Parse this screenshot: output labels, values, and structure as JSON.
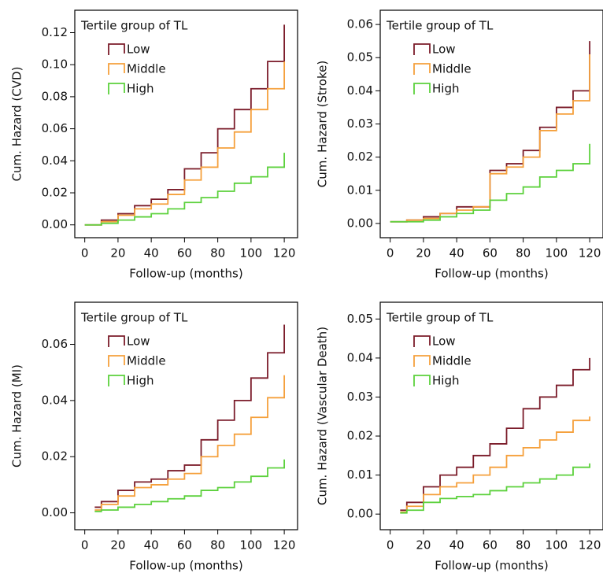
{
  "chart_data": [
    {
      "type": "line",
      "drawstyle": "steps-post",
      "ylabel": "Cum. Hazard (CVD)",
      "xlabel": "Follow-up (months)",
      "legend_title": "Tertile group of TL",
      "legend": "upper left",
      "x": [
        0,
        10,
        20,
        30,
        40,
        50,
        60,
        70,
        80,
        90,
        100,
        110,
        120
      ],
      "series": [
        {
          "name": "Low",
          "color": "#7b1c2a",
          "values": [
            0,
            0.003,
            0.007,
            0.012,
            0.016,
            0.022,
            0.035,
            0.045,
            0.06,
            0.072,
            0.085,
            0.102,
            0.125
          ]
        },
        {
          "name": "Middle",
          "color": "#f5a03c",
          "values": [
            0,
            0.002,
            0.006,
            0.01,
            0.013,
            0.019,
            0.028,
            0.036,
            0.048,
            0.058,
            0.072,
            0.085,
            0.102
          ]
        },
        {
          "name": "High",
          "color": "#5cd13c",
          "values": [
            0,
            0.001,
            0.003,
            0.005,
            0.007,
            0.01,
            0.014,
            0.017,
            0.021,
            0.026,
            0.03,
            0.036,
            0.045
          ]
        }
      ],
      "xlim": [
        -6,
        128
      ],
      "xticks": [
        0,
        20,
        40,
        60,
        80,
        100,
        120
      ],
      "ylim": [
        -0.008,
        0.134
      ],
      "yticks": [
        {
          "value": 0,
          "label": "0.00"
        },
        0.02,
        0.04,
        0.06,
        0.08,
        {
          "value": 0.1,
          "label": "0.10"
        },
        0.12
      ]
    },
    {
      "type": "line",
      "drawstyle": "steps-post",
      "ylabel": "Cum. Hazard (Stroke)",
      "xlabel": "Follow-up (months)",
      "legend_title": "Tertile group of TL",
      "legend": "upper left",
      "x": [
        0,
        10,
        20,
        30,
        40,
        50,
        60,
        70,
        80,
        90,
        100,
        110,
        120
      ],
      "series": [
        {
          "name": "Low",
          "color": "#7b1c2a",
          "values": [
            0.0005,
            0.001,
            0.002,
            0.003,
            0.005,
            0.005,
            0.016,
            0.018,
            0.022,
            0.029,
            0.035,
            0.04,
            0.055
          ]
        },
        {
          "name": "Middle",
          "color": "#f5a03c",
          "values": [
            0.0005,
            0.001,
            0.0015,
            0.003,
            0.004,
            0.005,
            0.015,
            0.017,
            0.02,
            0.028,
            0.033,
            0.037,
            0.051
          ]
        },
        {
          "name": "High",
          "color": "#5cd13c",
          "values": [
            0.0005,
            0.0005,
            0.001,
            0.002,
            0.003,
            0.004,
            0.007,
            0.009,
            0.011,
            0.014,
            0.016,
            0.018,
            0.024
          ]
        }
      ],
      "xlim": [
        -6,
        128
      ],
      "xticks": [
        0,
        20,
        40,
        60,
        80,
        100,
        120
      ],
      "ylim": [
        -0.0043,
        0.0643
      ],
      "yticks": [
        {
          "value": 0,
          "label": "0.00"
        },
        0.01,
        0.02,
        0.03,
        0.04,
        0.05,
        0.06
      ]
    },
    {
      "type": "line",
      "drawstyle": "steps-post",
      "ylabel": "Cum. Hazard (MI)",
      "xlabel": "Follow-up (months)",
      "legend_title": "Tertile group of TL",
      "legend": "upper left",
      "x": [
        6,
        10,
        20,
        30,
        40,
        50,
        60,
        70,
        80,
        90,
        100,
        110,
        120
      ],
      "series": [
        {
          "name": "Low",
          "color": "#7b1c2a",
          "values": [
            0.002,
            0.004,
            0.008,
            0.011,
            0.012,
            0.015,
            0.017,
            0.026,
            0.033,
            0.04,
            0.048,
            0.057,
            0.067
          ]
        },
        {
          "name": "Middle",
          "color": "#f5a03c",
          "values": [
            0.001,
            0.003,
            0.006,
            0.009,
            0.01,
            0.012,
            0.014,
            0.02,
            0.024,
            0.028,
            0.034,
            0.041,
            0.049
          ]
        },
        {
          "name": "High",
          "color": "#5cd13c",
          "values": [
            0.0005,
            0.001,
            0.002,
            0.003,
            0.004,
            0.005,
            0.006,
            0.008,
            0.009,
            0.011,
            0.013,
            0.016,
            0.019
          ]
        }
      ],
      "xlim": [
        -6,
        128
      ],
      "xticks": [
        0,
        20,
        40,
        60,
        80,
        100,
        120
      ],
      "ylim": [
        -0.006,
        0.075
      ],
      "yticks": [
        {
          "value": 0,
          "label": "0.00"
        },
        0.02,
        0.04,
        0.06
      ]
    },
    {
      "type": "line",
      "drawstyle": "steps-post",
      "ylabel": "Cum. Hazard (Vascular Death)",
      "xlabel": "Follow-up (months)",
      "legend_title": "Tertile group of TL",
      "legend": "upper left",
      "x": [
        6,
        10,
        20,
        30,
        40,
        50,
        60,
        70,
        80,
        90,
        100,
        110,
        120
      ],
      "series": [
        {
          "name": "Low",
          "color": "#7b1c2a",
          "values": [
            0.001,
            0.003,
            0.007,
            0.01,
            0.012,
            0.015,
            0.018,
            0.022,
            0.027,
            0.03,
            0.033,
            0.037,
            0.04
          ]
        },
        {
          "name": "Middle",
          "color": "#f5a03c",
          "values": [
            0.0005,
            0.002,
            0.005,
            0.007,
            0.008,
            0.01,
            0.012,
            0.015,
            0.017,
            0.019,
            0.021,
            0.024,
            0.025
          ]
        },
        {
          "name": "High",
          "color": "#5cd13c",
          "values": [
            0.0003,
            0.001,
            0.003,
            0.004,
            0.0045,
            0.005,
            0.006,
            0.007,
            0.008,
            0.009,
            0.01,
            0.012,
            0.013
          ]
        }
      ],
      "xlim": [
        -6,
        128
      ],
      "xticks": [
        0,
        20,
        40,
        60,
        80,
        100,
        120
      ],
      "ylim": [
        -0.004,
        0.0543
      ],
      "yticks": [
        {
          "value": 0,
          "label": "0.00"
        },
        0.01,
        0.02,
        0.03,
        0.04,
        0.05
      ]
    }
  ]
}
